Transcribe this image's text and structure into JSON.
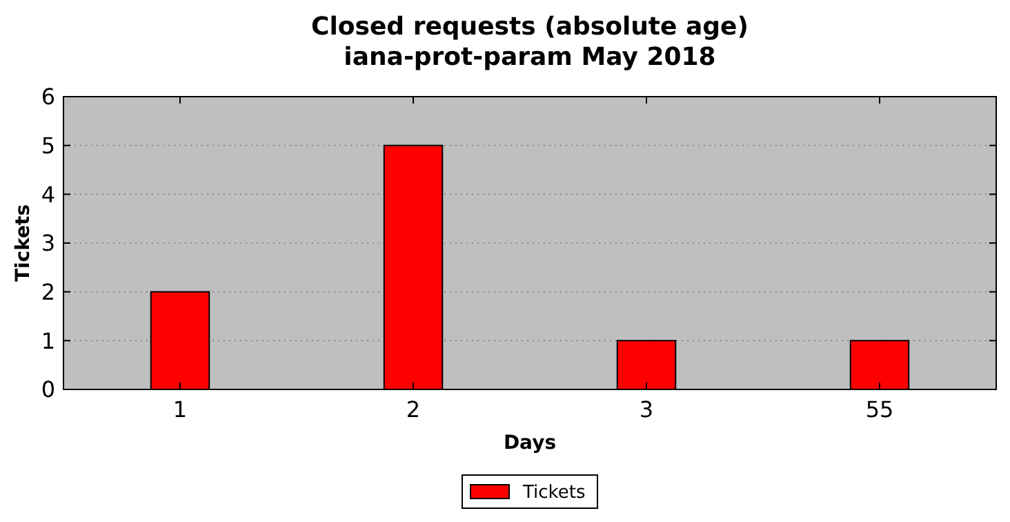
{
  "chart_data": {
    "type": "bar",
    "title": "Closed requests (absolute age)",
    "subtitle": "iana-prot-param May 2018",
    "xlabel": "Days",
    "ylabel": "Tickets",
    "categories": [
      "1",
      "2",
      "3",
      "55"
    ],
    "series": [
      {
        "name": "Tickets",
        "color": "#ff0000",
        "values": [
          2,
          5,
          1,
          1
        ]
      }
    ],
    "ylim": [
      0,
      6
    ],
    "yticks": [
      0,
      1,
      2,
      3,
      4,
      5,
      6
    ],
    "grid": "y",
    "legend": "bottom"
  }
}
